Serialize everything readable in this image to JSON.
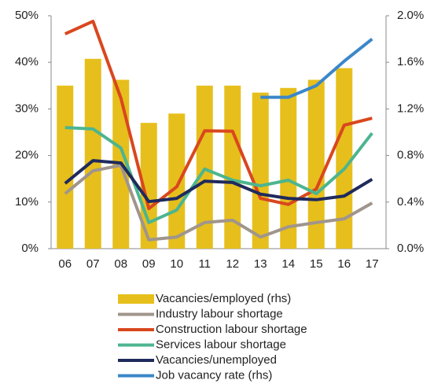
{
  "chart_data": {
    "type": "combo",
    "categories": [
      "06",
      "07",
      "08",
      "09",
      "10",
      "11",
      "12",
      "13",
      "14",
      "15",
      "16",
      "17"
    ],
    "ylim": [
      0,
      50
    ],
    "yticks": [
      {
        "value": 0,
        "label": "0%"
      },
      {
        "value": 10,
        "label": "10%"
      },
      {
        "value": 20,
        "label": "20%"
      },
      {
        "value": 30,
        "label": "30%"
      },
      {
        "value": 40,
        "label": "40%"
      },
      {
        "value": 50,
        "label": "50%"
      }
    ],
    "y2lim": [
      0,
      2.0
    ],
    "y2ticks": [
      {
        "value": 0,
        "label": "0.0%"
      },
      {
        "value": 0.4,
        "label": "0.4%"
      },
      {
        "value": 0.8,
        "label": "0.8%"
      },
      {
        "value": 1.2,
        "label": "1.2%"
      },
      {
        "value": 1.6,
        "label": "1.6%"
      },
      {
        "value": 2.0,
        "label": "2.0%"
      }
    ],
    "grid": false,
    "legend": "bottom",
    "series": [
      {
        "name": "Vacancies/employed (rhs)",
        "type": "bar",
        "axis": "y2",
        "color": "#e6bf1c",
        "values": [
          1.4,
          1.63,
          1.45,
          1.08,
          1.16,
          1.4,
          1.4,
          1.34,
          1.38,
          1.45,
          1.55,
          null
        ]
      },
      {
        "name": "Industry labour shortage",
        "type": "line",
        "color": "#a0958c",
        "values": [
          11.8,
          16.7,
          17.9,
          1.9,
          2.5,
          5.6,
          6.1,
          2.5,
          4.7,
          5.6,
          6.4,
          9.8
        ]
      },
      {
        "name": "Construction labour shortage",
        "type": "line",
        "color": "#d9471e",
        "values": [
          46.1,
          48.8,
          32.3,
          8.6,
          13.3,
          25.3,
          25.2,
          10.8,
          9.5,
          12.8,
          26.5,
          28.0
        ]
      },
      {
        "name": "Services labour shortage",
        "type": "line",
        "color": "#4cb58f",
        "values": [
          26.0,
          25.7,
          21.6,
          5.6,
          8.3,
          17.1,
          14.7,
          13.5,
          14.7,
          11.8,
          17.1,
          24.8
        ]
      },
      {
        "name": "Vacancies/unemployed",
        "type": "line",
        "color": "#1f2a5c",
        "values": [
          14.0,
          18.9,
          18.4,
          10.1,
          10.8,
          14.5,
          14.2,
          11.7,
          10.8,
          10.5,
          11.3,
          14.9
        ]
      },
      {
        "name": "Job vacancy rate (rhs)",
        "type": "line",
        "axis": "y2",
        "color": "#3b87c9",
        "values": [
          null,
          null,
          null,
          null,
          null,
          null,
          null,
          1.3,
          1.3,
          1.4,
          1.61,
          1.8
        ]
      }
    ]
  }
}
